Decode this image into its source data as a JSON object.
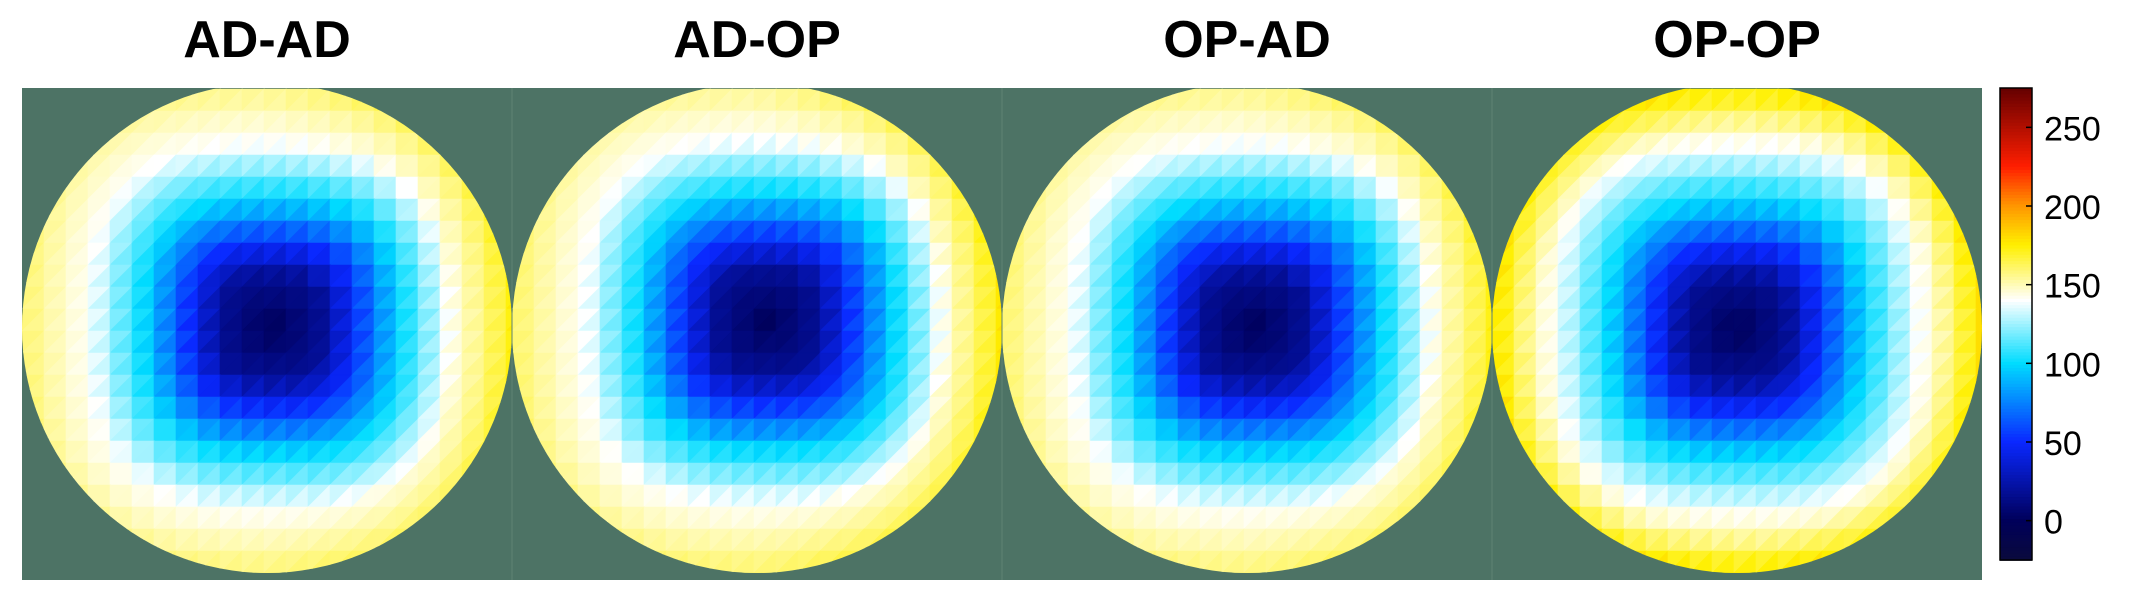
{
  "chart_data": {
    "type": "heatmap",
    "subtype": "circular-polar-maps",
    "panels": [
      {
        "title": "AD-AD",
        "center_value": 0,
        "mid_ring_value": 100,
        "rim_value": 155,
        "center_offset": [
          0.02,
          -0.03
        ],
        "bright_side": "right",
        "bright_value": 170
      },
      {
        "title": "AD-OP",
        "center_value": 0,
        "mid_ring_value": 100,
        "rim_value": 155,
        "center_offset": [
          0.04,
          -0.05
        ],
        "bright_side": "right",
        "bright_value": 175
      },
      {
        "title": "OP-AD",
        "center_value": 0,
        "mid_ring_value": 100,
        "rim_value": 155,
        "center_offset": [
          0.03,
          -0.03
        ],
        "bright_side": "right",
        "bright_value": 170
      },
      {
        "title": "OP-OP",
        "center_value": 0,
        "mid_ring_value": 100,
        "rim_value": 165,
        "center_offset": [
          0.0,
          -0.02
        ],
        "bright_side": "rim",
        "bright_value": 175
      }
    ],
    "colorbar": {
      "range": [
        -25,
        275
      ],
      "ticks": [
        0,
        50,
        100,
        150,
        200,
        250
      ],
      "colormap": "jet-white",
      "stops": [
        {
          "v": -25,
          "c": "#0a0a3c"
        },
        {
          "v": 0,
          "c": "#00005a"
        },
        {
          "v": 50,
          "c": "#0a28ff"
        },
        {
          "v": 100,
          "c": "#00dcff"
        },
        {
          "v": 140,
          "c": "#ffffff"
        },
        {
          "v": 175,
          "c": "#fff000"
        },
        {
          "v": 200,
          "c": "#ff9600"
        },
        {
          "v": 225,
          "c": "#ff1e00"
        },
        {
          "v": 275,
          "c": "#640000"
        }
      ]
    },
    "background_color": "#4d7365"
  }
}
